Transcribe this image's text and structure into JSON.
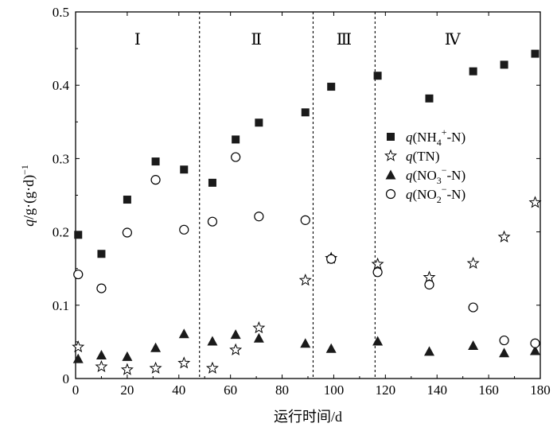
{
  "chart_data": {
    "type": "scatter",
    "xlabel": "运行时间/d",
    "ylabel_parts": [
      "q",
      "/g·(g·d)",
      "−1"
    ],
    "xlim": [
      0,
      180
    ],
    "ylim": [
      0,
      0.5
    ],
    "x_ticks": [
      "0",
      "20",
      "40",
      "60",
      "80",
      "100",
      "120",
      "140",
      "160",
      "180"
    ],
    "y_ticks": [
      "0",
      "0.1",
      "0.2",
      "0.3",
      "0.4",
      "0.5"
    ],
    "phase_boundaries": [
      48,
      92,
      116
    ],
    "phases": [
      {
        "label": "Ⅰ",
        "x": 24
      },
      {
        "label": "Ⅱ",
        "x": 70
      },
      {
        "label": "Ⅲ",
        "x": 104
      },
      {
        "label": "Ⅳ",
        "x": 146
      }
    ],
    "legend_position": "right",
    "series": [
      {
        "name": "q(NH4+-N)",
        "legend": {
          "q": "q",
          "pre": "(NH",
          "sub": "4",
          "sup": "+",
          "post": "-N)"
        },
        "marker": "filled-square",
        "points": [
          [
            1,
            0.196
          ],
          [
            10,
            0.17
          ],
          [
            20,
            0.244
          ],
          [
            31,
            0.296
          ],
          [
            42,
            0.285
          ],
          [
            53,
            0.267
          ],
          [
            62,
            0.326
          ],
          [
            71,
            0.349
          ],
          [
            89,
            0.363
          ],
          [
            99,
            0.398
          ],
          [
            117,
            0.413
          ],
          [
            137,
            0.382
          ],
          [
            154,
            0.419
          ],
          [
            166,
            0.428
          ],
          [
            178,
            0.443
          ]
        ]
      },
      {
        "name": "q(TN)",
        "legend": {
          "q": "q",
          "pre": "(TN)",
          "sub": "",
          "sup": "",
          "post": ""
        },
        "marker": "open-star",
        "points": [
          [
            1,
            0.043
          ],
          [
            10,
            0.016
          ],
          [
            20,
            0.012
          ],
          [
            31,
            0.014
          ],
          [
            42,
            0.021
          ],
          [
            53,
            0.014
          ],
          [
            62,
            0.039
          ],
          [
            71,
            0.069
          ],
          [
            89,
            0.134
          ],
          [
            99,
            0.164
          ],
          [
            117,
            0.156
          ],
          [
            137,
            0.138
          ],
          [
            154,
            0.157
          ],
          [
            166,
            0.193
          ],
          [
            178,
            0.24
          ]
        ]
      },
      {
        "name": "q(NO3−-N)",
        "legend": {
          "q": "q",
          "pre": "(NO",
          "sub": "3",
          "sup": "−",
          "post": "-N)"
        },
        "marker": "filled-triangle",
        "points": [
          [
            1,
            0.027
          ],
          [
            10,
            0.032
          ],
          [
            20,
            0.03
          ],
          [
            31,
            0.042
          ],
          [
            42,
            0.061
          ],
          [
            53,
            0.051
          ],
          [
            62,
            0.06
          ],
          [
            71,
            0.055
          ],
          [
            89,
            0.048
          ],
          [
            99,
            0.041
          ],
          [
            117,
            0.051
          ],
          [
            137,
            0.037
          ],
          [
            154,
            0.045
          ],
          [
            166,
            0.035
          ],
          [
            178,
            0.038
          ]
        ]
      },
      {
        "name": "q(NO2−-N)",
        "legend": {
          "q": "q",
          "pre": "(NO",
          "sub": "2",
          "sup": "−",
          "post": "-N)"
        },
        "marker": "open-circle",
        "points": [
          [
            1,
            0.142
          ],
          [
            10,
            0.123
          ],
          [
            20,
            0.199
          ],
          [
            31,
            0.271
          ],
          [
            42,
            0.203
          ],
          [
            53,
            0.214
          ],
          [
            62,
            0.302
          ],
          [
            71,
            0.221
          ],
          [
            89,
            0.216
          ],
          [
            99,
            0.163
          ],
          [
            117,
            0.145
          ],
          [
            137,
            0.128
          ],
          [
            154,
            0.097
          ],
          [
            166,
            0.052
          ],
          [
            178,
            0.048
          ]
        ]
      }
    ]
  }
}
